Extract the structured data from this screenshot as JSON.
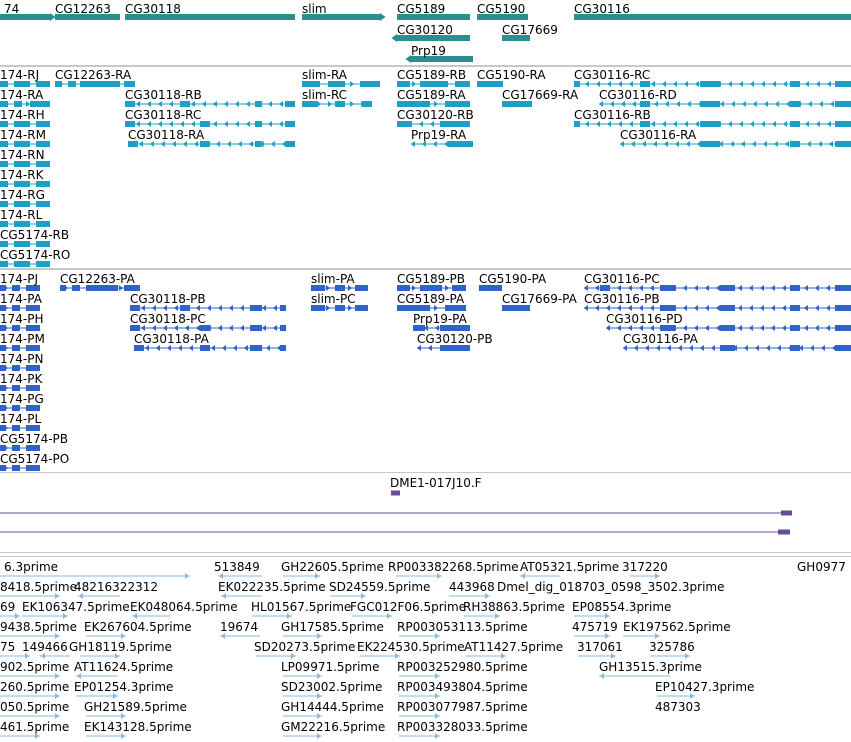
{
  "colors": {
    "gene": "#2a8f8f",
    "transcript": "#1d9fc6",
    "cds": "#2f63c9",
    "clone": "#6b4a9a",
    "est": "#8ab8dc",
    "separator": "#c8c8c8"
  },
  "tracks": {
    "genes": {
      "labels": [
        {
          "text": "74"
        },
        {
          "text": "CG12263"
        },
        {
          "text": "CG30118"
        },
        {
          "text": "slim"
        },
        {
          "text": "CG5189"
        },
        {
          "text": "CG5190"
        },
        {
          "text": "CG30116"
        },
        {
          "text": "CG30120"
        },
        {
          "text": "CG17669"
        },
        {
          "text": "Prp19"
        }
      ]
    },
    "transcripts": {
      "labels": [
        {
          "text": "174-RJ"
        },
        {
          "text": "CG12263-RA"
        },
        {
          "text": "slim-RA"
        },
        {
          "text": "CG5189-RB"
        },
        {
          "text": "CG5190-RA"
        },
        {
          "text": "CG30116-RC"
        },
        {
          "text": "174-RA"
        },
        {
          "text": "CG30118-RB"
        },
        {
          "text": "slim-RC"
        },
        {
          "text": "CG5189-RA"
        },
        {
          "text": "CG17669-RA"
        },
        {
          "text": "CG30116-RD"
        },
        {
          "text": "174-RH"
        },
        {
          "text": "CG30118-RC"
        },
        {
          "text": "CG30120-RB"
        },
        {
          "text": "CG30116-RB"
        },
        {
          "text": "174-RM"
        },
        {
          "text": "CG30118-RA"
        },
        {
          "text": "Prp19-RA"
        },
        {
          "text": "CG30116-RA"
        },
        {
          "text": "174-RN"
        },
        {
          "text": "174-RK"
        },
        {
          "text": "174-RG"
        },
        {
          "text": "174-RL"
        },
        {
          "text": "CG5174-RB"
        },
        {
          "text": "CG5174-RO"
        }
      ]
    },
    "cds": {
      "labels": [
        {
          "text": "174-PJ"
        },
        {
          "text": "CG12263-PA"
        },
        {
          "text": "slim-PA"
        },
        {
          "text": "CG5189-PB"
        },
        {
          "text": "CG5190-PA"
        },
        {
          "text": "CG30116-PC"
        },
        {
          "text": "174-PA"
        },
        {
          "text": "CG30118-PB"
        },
        {
          "text": "slim-PC"
        },
        {
          "text": "CG5189-PA"
        },
        {
          "text": "CG17669-PA"
        },
        {
          "text": "CG30116-PB"
        },
        {
          "text": "174-PH"
        },
        {
          "text": "CG30118-PC"
        },
        {
          "text": "Prp19-PA"
        },
        {
          "text": "CG30116-PD"
        },
        {
          "text": "174-PM"
        },
        {
          "text": "CG30118-PA"
        },
        {
          "text": "CG30120-PB"
        },
        {
          "text": "CG30116-PA"
        },
        {
          "text": "174-PN"
        },
        {
          "text": "174-PK"
        },
        {
          "text": "174-PG"
        },
        {
          "text": "174-PL"
        },
        {
          "text": "CG5174-PB"
        },
        {
          "text": "CG5174-PO"
        }
      ]
    },
    "clones": {
      "labels": [
        {
          "text": "DME1-017J10.F"
        }
      ]
    },
    "ests": {
      "labels": [
        {
          "text": "6.3prime"
        },
        {
          "text": "513849"
        },
        {
          "text": "GH22605.5prime"
        },
        {
          "text": "RP003382268.5prime"
        },
        {
          "text": "AT05321.5prime"
        },
        {
          "text": "317220"
        },
        {
          "text": "GH0977"
        },
        {
          "text": "8418.5prime"
        },
        {
          "text": "48216322312"
        },
        {
          "text": "EK022235.5prime"
        },
        {
          "text": "SD24559.5prime"
        },
        {
          "text": "443968"
        },
        {
          "text": "Dmel_dig_018703_0598_3502.3prime"
        },
        {
          "text": "69"
        },
        {
          "text": "EK106347.5prime"
        },
        {
          "text": "EK048064.5prime"
        },
        {
          "text": "HL01567.5prime"
        },
        {
          "text": "FGC012F06.5prime"
        },
        {
          "text": "RH38863.5prime"
        },
        {
          "text": "EP08554.3prime"
        },
        {
          "text": "9438.5prime"
        },
        {
          "text": "EK267604.5prime"
        },
        {
          "text": "19674"
        },
        {
          "text": "GH17585.5prime"
        },
        {
          "text": "RP003053113.5prime"
        },
        {
          "text": "475719"
        },
        {
          "text": "EK197562.5prime"
        },
        {
          "text": "75"
        },
        {
          "text": "149466"
        },
        {
          "text": "GH18119.5prime"
        },
        {
          "text": "SD20273.5prime"
        },
        {
          "text": "EK224530.5prime"
        },
        {
          "text": "AT11427.5prime"
        },
        {
          "text": "317061"
        },
        {
          "text": "325786"
        },
        {
          "text": "902.5prime"
        },
        {
          "text": "AT11624.5prime"
        },
        {
          "text": "LP09971.5prime"
        },
        {
          "text": "RP003252980.5prime"
        },
        {
          "text": "GH13515.3prime"
        },
        {
          "text": "260.5prime"
        },
        {
          "text": "EP01254.3prime"
        },
        {
          "text": "SD23002.5prime"
        },
        {
          "text": "RP003493804.5prime"
        },
        {
          "text": "EP10427.3prime"
        },
        {
          "text": "050.5prime"
        },
        {
          "text": "GH21589.5prime"
        },
        {
          "text": "GH14444.5prime"
        },
        {
          "text": "RP003077987.5prime"
        },
        {
          "text": "487303"
        },
        {
          "text": "461.5prime"
        },
        {
          "text": "EK143128.5prime"
        },
        {
          "text": "GM22216.5prime"
        },
        {
          "text": "RP003328033.5prime"
        }
      ]
    }
  }
}
